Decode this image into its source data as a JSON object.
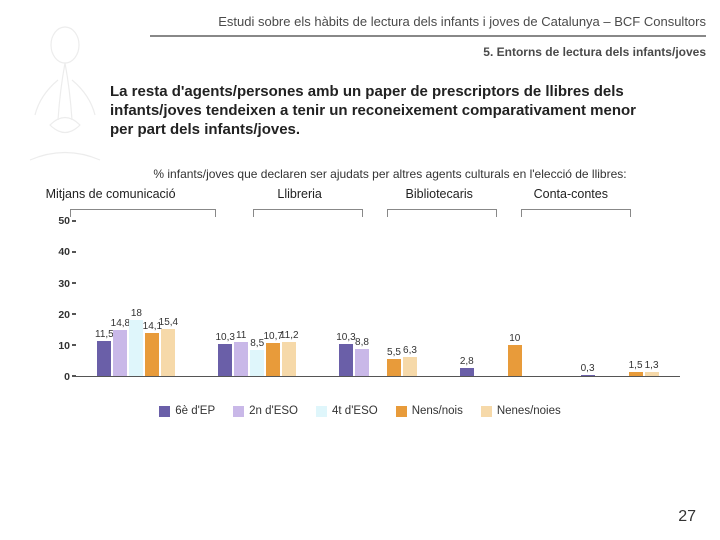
{
  "header": {
    "title": "Estudi sobre els hàbits de lectura dels infants i joves de Catalunya – BCF Consultors",
    "section": "5. Entorns de lectura dels infants/joves"
  },
  "body_text": "La resta d'agents/persones amb un paper de prescriptors de llibres dels infants/joves tendeixen a tenir un reconeixement comparativament menor per part dels infants/joves.",
  "caption": "% infants/joves que declaren ser ajudats per altres agents culturals en l'elecció de llibres:",
  "chart": {
    "type": "bar",
    "ymax": 50,
    "ytick_step": 10,
    "background_color": "#ffffff",
    "axis_color": "#555555",
    "value_label_fontsize": 10,
    "group_label_fontsize": 12.5,
    "series": [
      {
        "name": "6è d'EP",
        "color": "#6a5fa8"
      },
      {
        "name": "2n d'ESO",
        "color": "#c9b8e8"
      },
      {
        "name": "4t d'ESO",
        "color": "#dff6fb"
      },
      {
        "name": "Nens/nois",
        "color": "#e89b3a"
      },
      {
        "name": "Nenes/noies",
        "color": "#f6d9a9"
      }
    ],
    "groups": [
      {
        "label": "Mitjans de comunicació",
        "values": [
          11.5,
          14.8,
          18.0,
          14.1,
          15.4
        ]
      },
      {
        "label": "Llibreria",
        "values": [
          10.3,
          11.0,
          8.5,
          10.7,
          11.2
        ]
      },
      {
        "label": "Bibliotecaris",
        "values": [
          10.3,
          8.8,
          null,
          5.5,
          6.3
        ]
      },
      {
        "label": "Conta-contes",
        "values": [
          2.8,
          null,
          null,
          10.0,
          null
        ]
      },
      {
        "label": "",
        "values": [
          0.3,
          null,
          null,
          1.5,
          1.3
        ]
      }
    ]
  },
  "page_number": "27"
}
